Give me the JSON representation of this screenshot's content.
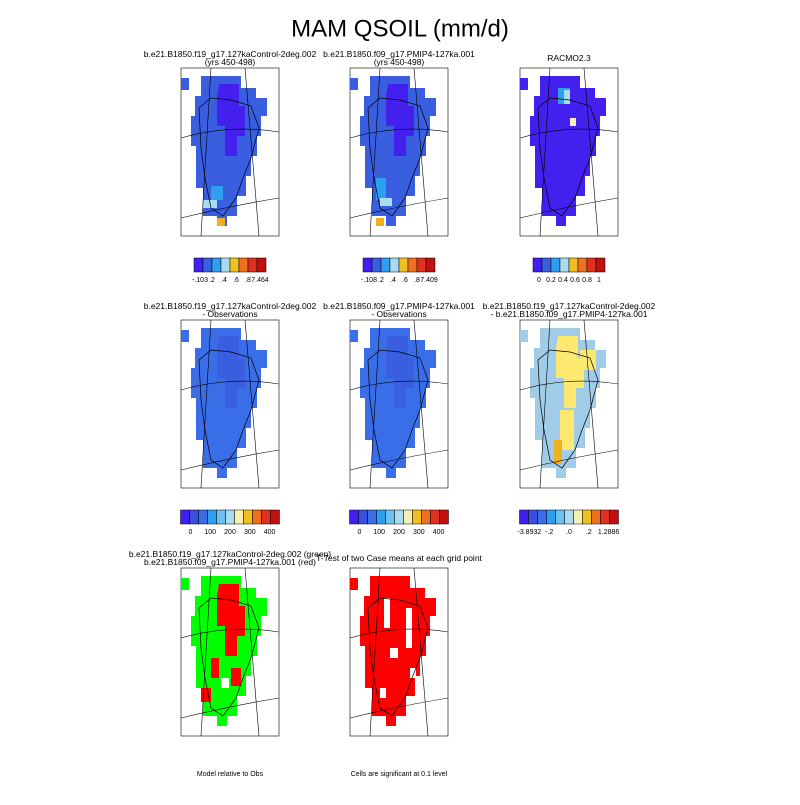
{
  "title": "MAM QSOIL (mm/d)",
  "panels": [
    {
      "title_lines": [
        "b.e21.B1850.f19_g17.127kaControl-2deg.002",
        "(yrs 450-498)"
      ],
      "colorbar": [
        "-.103",
        ".2",
        ".4",
        ".6",
        ".8",
        "7.464"
      ]
    },
    {
      "title_lines": [
        "b.e21.B1850.f09_g17.PMIP4-127ka.001",
        "(yrs 450-498)"
      ],
      "colorbar": [
        "-.108",
        ".2",
        ".4",
        ".6",
        ".8",
        "7.409"
      ]
    },
    {
      "title_lines": [
        "RACMO2.3"
      ],
      "colorbar": [
        "0",
        "0.2",
        "0.4",
        "0.6",
        "0.8",
        "1"
      ]
    },
    {
      "title_lines": [
        "b.e21.B1850.f19_g17.127kaControl-2deg.002",
        "- Observations"
      ],
      "colorbar": [
        "0",
        "100",
        "200",
        "300",
        "400"
      ]
    },
    {
      "title_lines": [
        "b.e21.B1850.f09_g17.PMIP4-127ka.001",
        "- Observations"
      ],
      "colorbar": [
        "0",
        "100",
        "200",
        "300",
        "400"
      ]
    },
    {
      "title_lines": [
        "b.e21.B1850.f19_g17.127kaControl-2deg.002",
        "- b.e21.B1850.f09_g17.PMIP4-127ka.001"
      ],
      "colorbar": [
        "-3.8932",
        "-.2",
        ".0",
        ".2",
        "1.2886"
      ]
    },
    {
      "title_lines": [
        "b.e21.B1850.f19_g17.127kaControl-2deg.002 (green)",
        "b.e21.B1850.f09_g17.PMIP4-127ka.001 (red)"
      ],
      "note": "Model relative to Obs"
    },
    {
      "title_lines": [
        "T-Test of two Case means at each grid point"
      ],
      "note": "Cells are significant at 0.1 level"
    }
  ]
}
